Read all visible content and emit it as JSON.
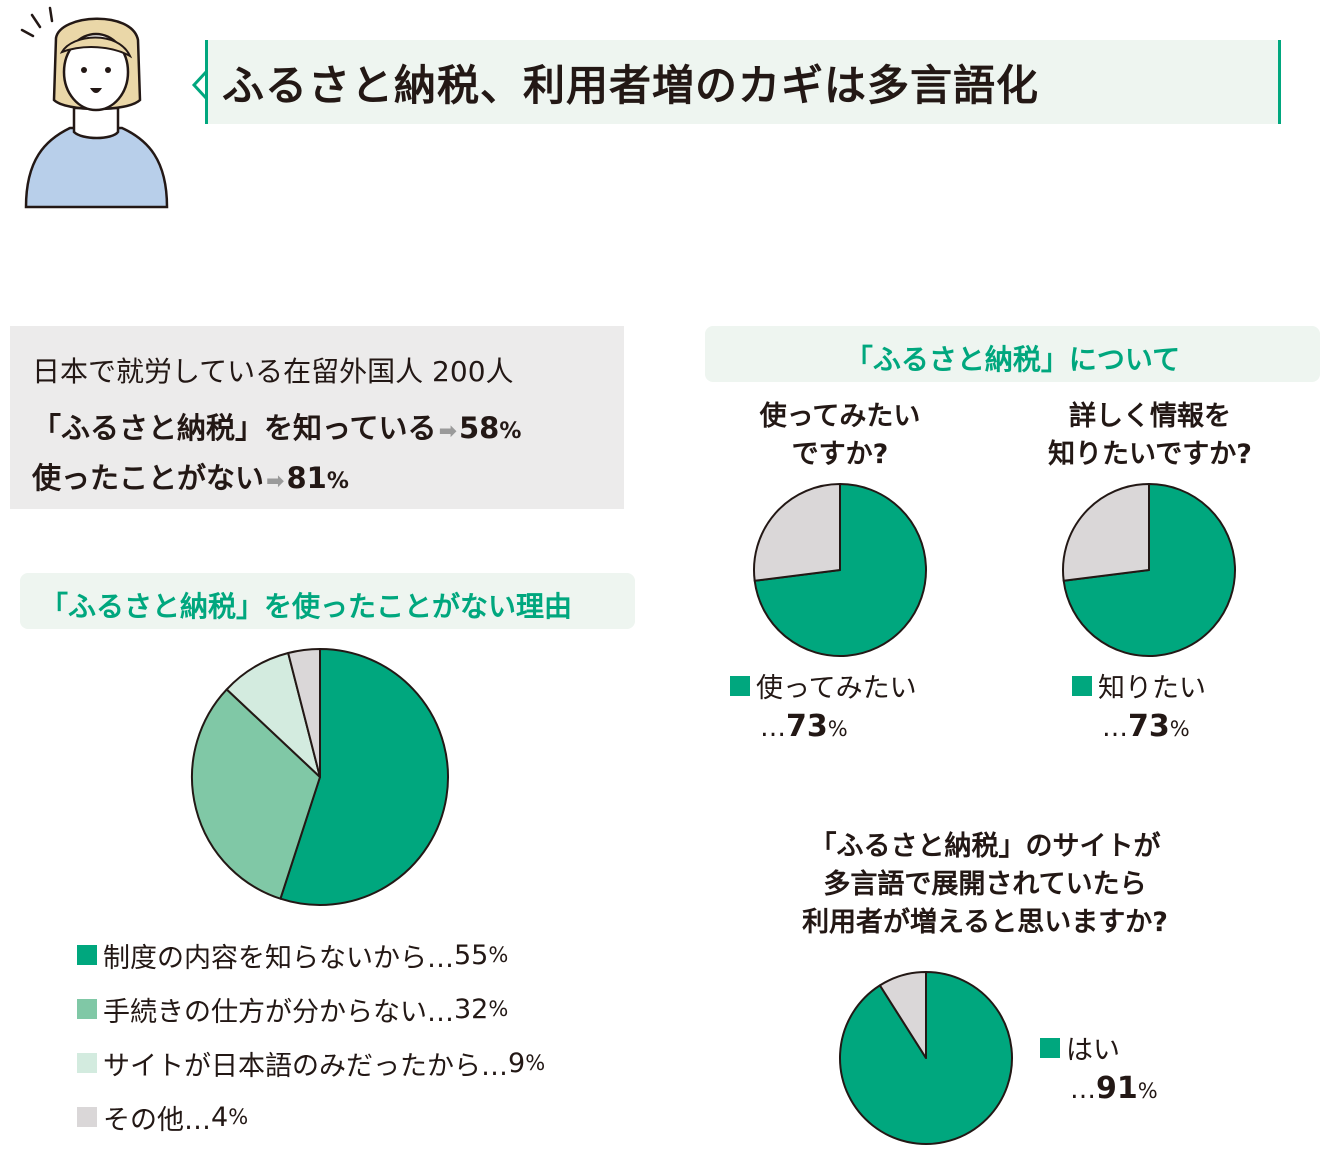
{
  "title": "ふるさと納税、利用者増のカギは多言語化",
  "colors": {
    "green_dark": "#00a77e",
    "green_mid": "#80c8a6",
    "green_light": "#d3ebdf",
    "gray": "#dad7d8",
    "title_bg": "#eef5f0",
    "info_bg": "#ecebeb"
  },
  "illustration": {
    "icon": "woman-speaking-icon"
  },
  "summary": {
    "line1": "日本で就労している在留外国人 200人",
    "line2_text": "「ふるさと納税」を知っている",
    "line2_value": "58",
    "line3_text": "使ったことがない",
    "line3_value": "81",
    "arrow": "➡",
    "percent_sign": "%"
  },
  "reasons": {
    "heading": "「ふるさと納税」を使ったことがない理由",
    "legend": [
      {
        "label": "制度の内容を知らないから…",
        "value": "55",
        "unit": "%"
      },
      {
        "label": "手続きの仕方が分からない…",
        "value": "32",
        "unit": "%"
      },
      {
        "label": "サイトが日本語のみだったから…",
        "value": "9",
        "unit": "%"
      },
      {
        "label": "その他…",
        "value": "4",
        "unit": "%"
      }
    ]
  },
  "about": {
    "heading": "「ふるさと納税」について",
    "q1": {
      "line1": "使ってみたい",
      "line2": "ですか?",
      "legend_label": "使ってみたい",
      "ellipsis": "…",
      "value": "73",
      "unit": "%"
    },
    "q2": {
      "line1": "詳しく情報を",
      "line2": "知りたいですか?",
      "legend_label": "知りたい",
      "ellipsis": "…",
      "value": "73",
      "unit": "%"
    },
    "q3": {
      "line1": "「ふるさと納税」のサイトが",
      "line2": "多言語で展開されていたら",
      "line3": "利用者が増えると思いますか?",
      "legend_label": "はい",
      "ellipsis": "…",
      "value": "91",
      "unit": "%"
    }
  },
  "chart_data": [
    {
      "type": "pie",
      "title": "「ふるさと納税」を使ったことがない理由",
      "categories": [
        "制度の内容を知らないから",
        "手続きの仕方が分からない",
        "サイトが日本語のみだったから",
        "その他"
      ],
      "values": [
        55,
        32,
        9,
        4
      ],
      "colors": [
        "#00a77e",
        "#80c8a6",
        "#d3ebdf",
        "#dad7d8"
      ]
    },
    {
      "type": "pie",
      "title": "使ってみたいですか?",
      "categories": [
        "使ってみたい",
        ""
      ],
      "values": [
        73,
        27
      ],
      "colors": [
        "#00a77e",
        "#dad7d8"
      ]
    },
    {
      "type": "pie",
      "title": "詳しく情報を知りたいですか?",
      "categories": [
        "知りたい",
        ""
      ],
      "values": [
        73,
        27
      ],
      "colors": [
        "#00a77e",
        "#dad7d8"
      ]
    },
    {
      "type": "pie",
      "title": "「ふるさと納税」のサイトが多言語で展開されていたら利用者が増えると思いますか?",
      "categories": [
        "はい",
        ""
      ],
      "values": [
        91,
        9
      ],
      "colors": [
        "#00a77e",
        "#dad7d8"
      ]
    }
  ]
}
